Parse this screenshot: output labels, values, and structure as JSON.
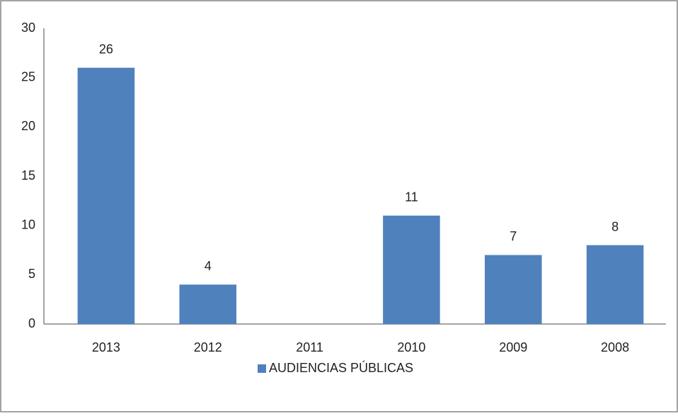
{
  "chart_data": {
    "type": "bar",
    "categories": [
      "2013",
      "2012",
      "2011",
      "2010",
      "2009",
      "2008"
    ],
    "series": [
      {
        "name": "AUDIENCIAS PÚBLICAS",
        "color": "#4f81bd",
        "values": [
          26,
          4,
          null,
          11,
          7,
          8
        ]
      }
    ],
    "ylim": [
      0,
      30
    ],
    "yticks": [
      0,
      5,
      10,
      15,
      20,
      25,
      30
    ],
    "grid": false,
    "legend": "bottom"
  }
}
